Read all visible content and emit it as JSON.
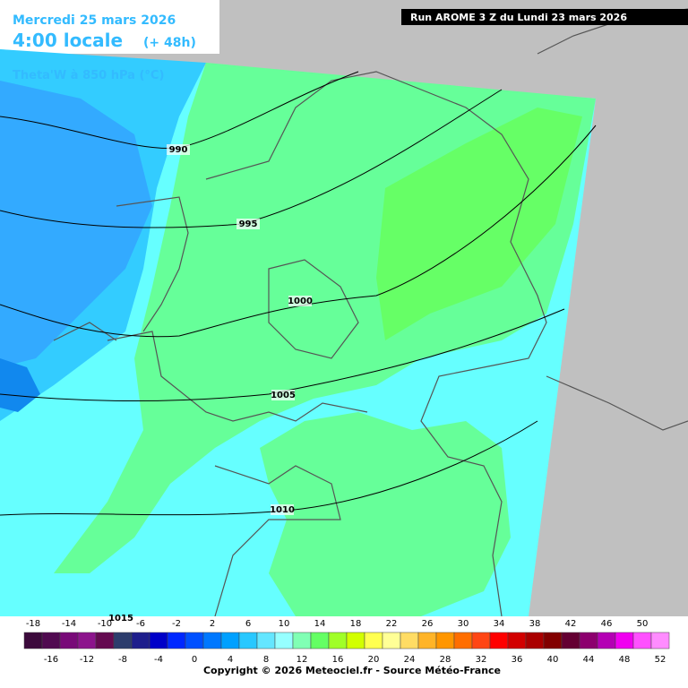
{
  "header": {
    "date": "Mercredi 25 mars 2026",
    "time": "4:00 locale",
    "lead": "(+ 48h)",
    "variable": "Theta'W à 850 hPa (°C)"
  },
  "run": "Run AROME 3 Z du Lundi 23 mars 2026",
  "isobars": [
    "990",
    "995",
    "1000",
    "1005",
    "1010",
    "1015"
  ],
  "legend": {
    "values": [
      -18,
      -16,
      -14,
      -12,
      -10,
      -8,
      -6,
      -4,
      -2,
      0,
      2,
      4,
      6,
      8,
      10,
      12,
      14,
      16,
      18,
      20,
      22,
      24,
      26,
      28,
      30,
      32,
      34,
      36,
      38,
      40,
      42,
      44,
      46,
      48,
      50,
      52
    ],
    "colors": [
      "#3c0a3c",
      "#500a50",
      "#780a78",
      "#8c148c",
      "#640a50",
      "#2c3c6c",
      "#1e1e8c",
      "#0000c8",
      "#0028ff",
      "#0050ff",
      "#0078ff",
      "#00a0ff",
      "#28c8ff",
      "#64e6ff",
      "#96ffff",
      "#80ffb4",
      "#64ff64",
      "#a0ff28",
      "#d2ff00",
      "#ffff50",
      "#ffff96",
      "#ffdc64",
      "#ffb428",
      "#ff9600",
      "#ff6e00",
      "#ff4614",
      "#ff0000",
      "#d20000",
      "#aa0000",
      "#820000",
      "#640032",
      "#8c006e",
      "#b400b4",
      "#f000f0",
      "#ff50ff",
      "#ff8cff"
    ]
  },
  "copyright": "Copyright © 2026 Meteociel.fr - Source Météo-France"
}
